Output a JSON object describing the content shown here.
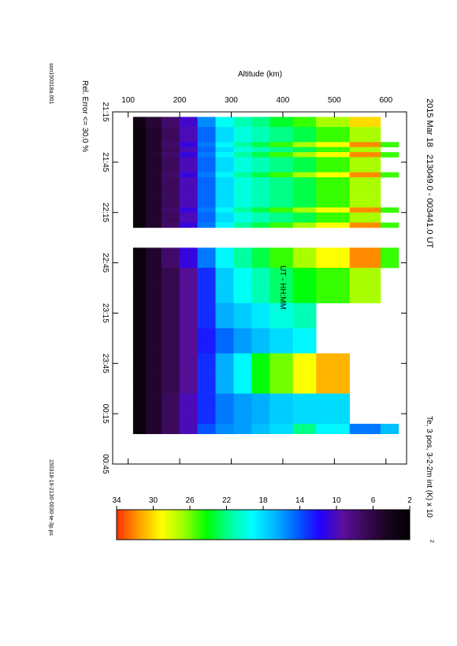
{
  "header": {
    "title_left": "2015 Mar 18",
    "title_center": "213049.0 - 003441.0 UT",
    "title_right": "Te, 3 pos, 3-2-2m int (K) x 10",
    "title_right_exp": "2",
    "file_left": "son150318a.001",
    "file_right": "150318-19-2130-0030-te-3p.ps",
    "rel_error": "Rel. Error <= 30.0 %"
  },
  "colors": {
    "ramp": [
      "#000000",
      "#1a0420",
      "#3a0a5a",
      "#5a0fa0",
      "#2200ff",
      "#0060ff",
      "#00b8ff",
      "#00ffff",
      "#00ff99",
      "#00ff00",
      "#99ff00",
      "#ffff00",
      "#ffa000",
      "#ff3000"
    ]
  },
  "chart_data": {
    "type": "heatmap",
    "xlabel": "UT - HH:MM",
    "ylabel": "Altitude (km)",
    "x_ticks": [
      "21:15",
      "21:45",
      "22:15",
      "22:45",
      "23:15",
      "23:45",
      "00:15",
      "00:45"
    ],
    "x_range_minutes": [
      0,
      210
    ],
    "x_tick_minutes": [
      0,
      30,
      60,
      90,
      120,
      150,
      180,
      210
    ],
    "y_ticks": [
      "100",
      "200",
      "300",
      "400",
      "500",
      "600"
    ],
    "y_tick_values": [
      100,
      200,
      300,
      400,
      500,
      600
    ],
    "y_range": [
      70,
      640
    ],
    "colorbar": {
      "min": 2,
      "max": 34,
      "ticks": [
        "2",
        "6",
        "10",
        "14",
        "18",
        "22",
        "26",
        "30",
        "34"
      ],
      "tick_values": [
        2,
        6,
        10,
        14,
        18,
        22,
        26,
        30,
        34
      ],
      "unit": "K x 100"
    },
    "altitude_bins": [
      [
        110,
        135
      ],
      [
        135,
        165
      ],
      [
        165,
        200
      ],
      [
        200,
        235
      ],
      [
        235,
        270
      ],
      [
        270,
        305
      ],
      [
        305,
        340
      ],
      [
        340,
        375
      ],
      [
        375,
        420
      ],
      [
        420,
        465
      ],
      [
        465,
        530
      ],
      [
        530,
        590
      ],
      [
        590,
        625
      ]
    ],
    "profile_types": {
      "A": [
        3.5,
        5.5,
        7.5,
        10.5,
        15.5,
        19.5,
        21,
        22,
        23.5,
        25,
        27,
        30,
        null
      ],
      "B": [
        3,
        5,
        7,
        10,
        14.5,
        18,
        20,
        21,
        22,
        23,
        25,
        27,
        null
      ],
      "C": [
        3,
        5,
        7.5,
        11,
        15,
        19,
        21.5,
        23,
        25,
        27,
        29,
        32,
        25
      ],
      "D": [
        3,
        5,
        6.5,
        9,
        13,
        17.5,
        19.5,
        21,
        22.5,
        24,
        25,
        27,
        null
      ],
      "E": [
        3,
        5,
        6.5,
        9,
        13,
        16.5,
        17.5,
        18.5,
        20,
        21,
        null,
        null,
        null
      ],
      "F": [
        3,
        5,
        6.5,
        9,
        12.5,
        14.5,
        16,
        17,
        18,
        19,
        null,
        null,
        null
      ],
      "G": [
        3,
        5,
        6.5,
        9,
        13,
        16.5,
        19,
        24,
        26,
        29,
        31,
        null,
        null
      ],
      "H": [
        3,
        5,
        7,
        10,
        13,
        15,
        16,
        16.5,
        17.5,
        18,
        18,
        null,
        null
      ],
      "I": [
        3,
        5,
        7,
        10,
        14,
        15.5,
        16,
        17,
        18,
        22,
        19,
        15,
        17
      ]
    },
    "time_columns": [
      {
        "t0": 3,
        "t1": 6,
        "profile": "A"
      },
      {
        "t0": 6,
        "t1": 9,
        "profile": "A"
      },
      {
        "t0": 9,
        "t1": 12,
        "profile": "B"
      },
      {
        "t0": 12,
        "t1": 15,
        "profile": "B"
      },
      {
        "t0": 15,
        "t1": 18,
        "profile": "B"
      },
      {
        "t0": 18,
        "t1": 21,
        "profile": "C"
      },
      {
        "t0": 21,
        "t1": 24,
        "profile": "B"
      },
      {
        "t0": 24,
        "t1": 27,
        "profile": "C"
      },
      {
        "t0": 27,
        "t1": 30,
        "profile": "B"
      },
      {
        "t0": 30,
        "t1": 33,
        "profile": "B"
      },
      {
        "t0": 33,
        "t1": 36,
        "profile": "B"
      },
      {
        "t0": 36,
        "t1": 39,
        "profile": "C"
      },
      {
        "t0": 39,
        "t1": 42,
        "profile": "B"
      },
      {
        "t0": 42,
        "t1": 45,
        "profile": "B"
      },
      {
        "t0": 45,
        "t1": 48,
        "profile": "B"
      },
      {
        "t0": 48,
        "t1": 51,
        "profile": "B"
      },
      {
        "t0": 51,
        "t1": 54,
        "profile": "B"
      },
      {
        "t0": 54,
        "t1": 57,
        "profile": "B"
      },
      {
        "t0": 57,
        "t1": 60,
        "profile": "C"
      },
      {
        "t0": 60,
        "t1": 63,
        "profile": "B"
      },
      {
        "t0": 63,
        "t1": 66,
        "profile": "B"
      },
      {
        "t0": 66,
        "t1": 69,
        "profile": "C"
      },
      {
        "t0": 81,
        "t1": 84,
        "profile": "C"
      },
      {
        "t0": 84,
        "t1": 87,
        "profile": "C"
      },
      {
        "t0": 87,
        "t1": 90,
        "profile": "C"
      },
      {
        "t0": 90,
        "t1": 93,
        "profile": "C"
      },
      {
        "t0": 93,
        "t1": 96,
        "profile": "D"
      },
      {
        "t0": 96,
        "t1": 99,
        "profile": "D"
      },
      {
        "t0": 99,
        "t1": 102,
        "profile": "D"
      },
      {
        "t0": 102,
        "t1": 105,
        "profile": "D"
      },
      {
        "t0": 105,
        "t1": 108,
        "profile": "D"
      },
      {
        "t0": 108,
        "t1": 111,
        "profile": "D"
      },
      {
        "t0": 111,
        "t1": 114,
        "profile": "D"
      },
      {
        "t0": 114,
        "t1": 117,
        "profile": "E"
      },
      {
        "t0": 117,
        "t1": 120,
        "profile": "E"
      },
      {
        "t0": 120,
        "t1": 123,
        "profile": "E"
      },
      {
        "t0": 123,
        "t1": 126,
        "profile": "E"
      },
      {
        "t0": 126,
        "t1": 129,
        "profile": "E"
      },
      {
        "t0": 129,
        "t1": 132,
        "profile": "F"
      },
      {
        "t0": 132,
        "t1": 135,
        "profile": "F"
      },
      {
        "t0": 135,
        "t1": 138,
        "profile": "F"
      },
      {
        "t0": 138,
        "t1": 141,
        "profile": "F"
      },
      {
        "t0": 141,
        "t1": 144,
        "profile": "F"
      },
      {
        "t0": 144,
        "t1": 147,
        "profile": "G"
      },
      {
        "t0": 147,
        "t1": 150,
        "profile": "G"
      },
      {
        "t0": 150,
        "t1": 153,
        "profile": "G"
      },
      {
        "t0": 153,
        "t1": 156,
        "profile": "G"
      },
      {
        "t0": 156,
        "t1": 159,
        "profile": "G"
      },
      {
        "t0": 159,
        "t1": 162,
        "profile": "G"
      },
      {
        "t0": 162,
        "t1": 165,
        "profile": "G"
      },
      {
        "t0": 165,
        "t1": 168,
        "profile": "G"
      },
      {
        "t0": 168,
        "t1": 171,
        "profile": "H"
      },
      {
        "t0": 171,
        "t1": 174,
        "profile": "H"
      },
      {
        "t0": 174,
        "t1": 177,
        "profile": "H"
      },
      {
        "t0": 177,
        "t1": 180,
        "profile": "H"
      },
      {
        "t0": 180,
        "t1": 183,
        "profile": "H"
      },
      {
        "t0": 183,
        "t1": 186,
        "profile": "H"
      },
      {
        "t0": 186,
        "t1": 189,
        "profile": "I"
      },
      {
        "t0": 189,
        "t1": 192,
        "profile": "I"
      }
    ]
  }
}
